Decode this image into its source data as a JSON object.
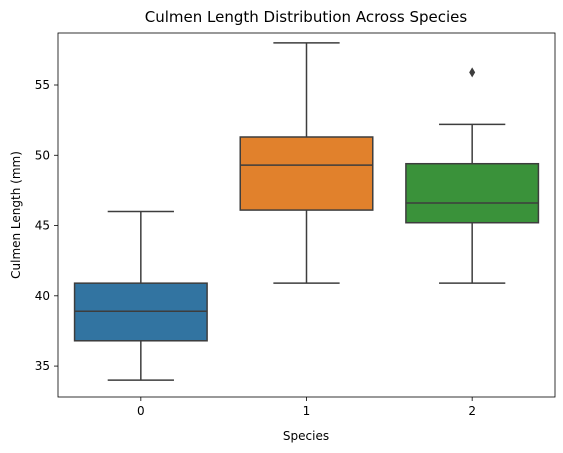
{
  "chart_data": {
    "type": "box",
    "title": "Culmen Length Distribution Across Species",
    "xlabel": "Species",
    "ylabel": "Culmen Length (mm)",
    "categories": [
      "0",
      "1",
      "2"
    ],
    "yticks": [
      35,
      40,
      45,
      50,
      55
    ],
    "ylim": [
      32.8,
      58.7
    ],
    "grid": false,
    "boxes": [
      {
        "category": "0",
        "whisker_low": 34.0,
        "q1": 36.8,
        "median": 38.9,
        "q3": 40.9,
        "whisker_high": 46.0,
        "outliers": [],
        "color": "#3274a1"
      },
      {
        "category": "1",
        "whisker_low": 40.9,
        "q1": 46.1,
        "median": 49.3,
        "q3": 51.3,
        "whisker_high": 58.0,
        "outliers": [],
        "color": "#e1812c"
      },
      {
        "category": "2",
        "whisker_low": 40.9,
        "q1": 45.2,
        "median": 46.6,
        "q3": 49.4,
        "whisker_high": 52.2,
        "outliers": [
          55.9
        ],
        "color": "#3a923a"
      }
    ],
    "line_color": "#3d3d3d"
  }
}
